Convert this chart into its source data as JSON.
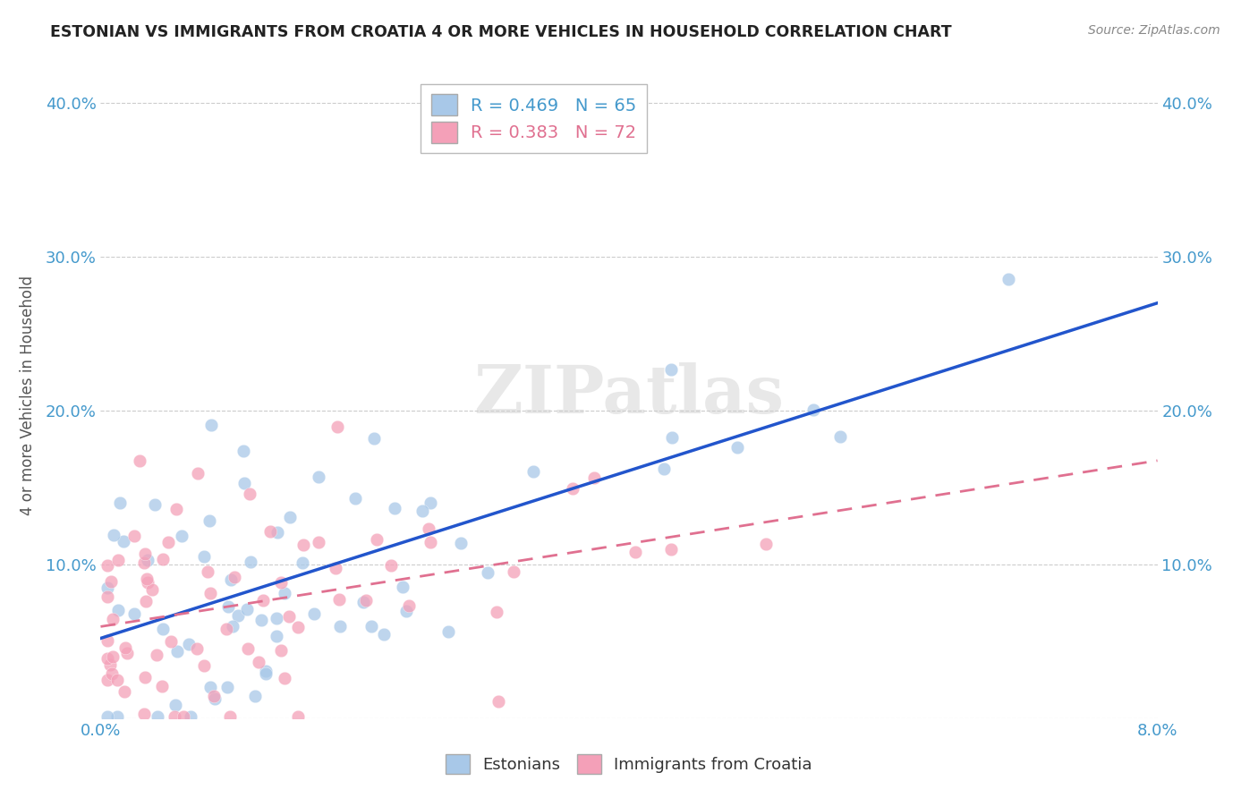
{
  "title": "ESTONIAN VS IMMIGRANTS FROM CROATIA 4 OR MORE VEHICLES IN HOUSEHOLD CORRELATION CHART",
  "source": "Source: ZipAtlas.com",
  "ylabel": "4 or more Vehicles in Household",
  "xlim": [
    0.0,
    0.08
  ],
  "ylim": [
    0.0,
    0.42
  ],
  "x_ticks": [
    0.0,
    0.02,
    0.04,
    0.06,
    0.08
  ],
  "x_tick_labels": [
    "0.0%",
    "",
    "",
    "",
    "8.0%"
  ],
  "y_ticks": [
    0.0,
    0.1,
    0.2,
    0.3,
    0.4
  ],
  "y_tick_labels": [
    "",
    "10.0%",
    "20.0%",
    "30.0%",
    "40.0%"
  ],
  "estonians": {
    "color": "#a8c8e8",
    "line_color": "#2255cc",
    "R": 0.469,
    "N": 65
  },
  "croatians": {
    "color": "#f4a0b8",
    "line_color": "#e07090",
    "R": 0.383,
    "N": 72
  },
  "watermark": "ZIPatlas",
  "background_color": "#ffffff",
  "grid_color": "#cccccc",
  "tick_color": "#4499cc",
  "title_color": "#222222",
  "source_color": "#888888",
  "ylabel_color": "#555555"
}
